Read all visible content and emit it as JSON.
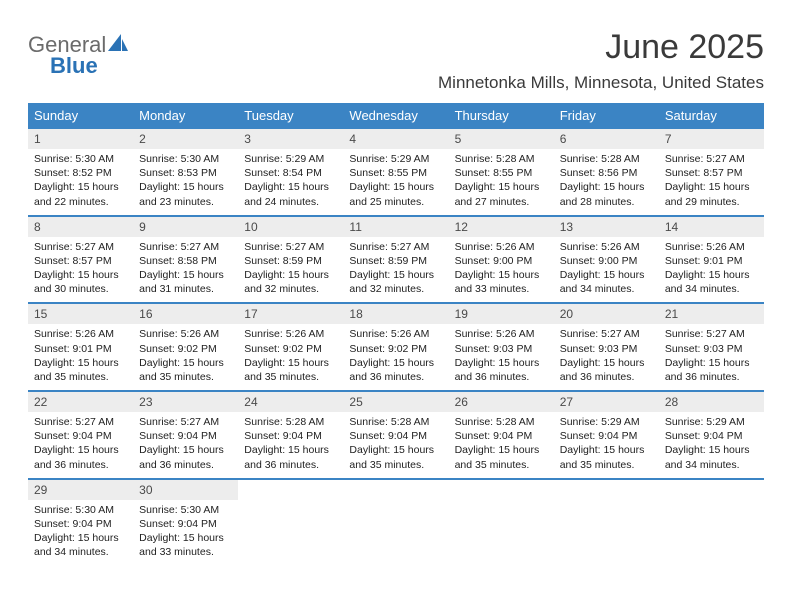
{
  "brand": {
    "word1": "General",
    "word2": "Blue"
  },
  "title": "June 2025",
  "location": "Minnetonka Mills, Minnesota, United States",
  "styling": {
    "header_blue": "#3b84c4",
    "day_bg": "#ededed",
    "background": "#ffffff",
    "text_color": "#222222",
    "month_fontsize": 34,
    "location_fontsize": 17,
    "dow_fontsize": 13,
    "daynum_fontsize": 12,
    "cell_fontsize": 10.5
  },
  "dow": [
    "Sunday",
    "Monday",
    "Tuesday",
    "Wednesday",
    "Thursday",
    "Friday",
    "Saturday"
  ],
  "weeks": [
    [
      {
        "n": "1",
        "sr": "5:30 AM",
        "ss": "8:52 PM",
        "dl": "15 hours and 22 minutes."
      },
      {
        "n": "2",
        "sr": "5:30 AM",
        "ss": "8:53 PM",
        "dl": "15 hours and 23 minutes."
      },
      {
        "n": "3",
        "sr": "5:29 AM",
        "ss": "8:54 PM",
        "dl": "15 hours and 24 minutes."
      },
      {
        "n": "4",
        "sr": "5:29 AM",
        "ss": "8:55 PM",
        "dl": "15 hours and 25 minutes."
      },
      {
        "n": "5",
        "sr": "5:28 AM",
        "ss": "8:55 PM",
        "dl": "15 hours and 27 minutes."
      },
      {
        "n": "6",
        "sr": "5:28 AM",
        "ss": "8:56 PM",
        "dl": "15 hours and 28 minutes."
      },
      {
        "n": "7",
        "sr": "5:27 AM",
        "ss": "8:57 PM",
        "dl": "15 hours and 29 minutes."
      }
    ],
    [
      {
        "n": "8",
        "sr": "5:27 AM",
        "ss": "8:57 PM",
        "dl": "15 hours and 30 minutes."
      },
      {
        "n": "9",
        "sr": "5:27 AM",
        "ss": "8:58 PM",
        "dl": "15 hours and 31 minutes."
      },
      {
        "n": "10",
        "sr": "5:27 AM",
        "ss": "8:59 PM",
        "dl": "15 hours and 32 minutes."
      },
      {
        "n": "11",
        "sr": "5:27 AM",
        "ss": "8:59 PM",
        "dl": "15 hours and 32 minutes."
      },
      {
        "n": "12",
        "sr": "5:26 AM",
        "ss": "9:00 PM",
        "dl": "15 hours and 33 minutes."
      },
      {
        "n": "13",
        "sr": "5:26 AM",
        "ss": "9:00 PM",
        "dl": "15 hours and 34 minutes."
      },
      {
        "n": "14",
        "sr": "5:26 AM",
        "ss": "9:01 PM",
        "dl": "15 hours and 34 minutes."
      }
    ],
    [
      {
        "n": "15",
        "sr": "5:26 AM",
        "ss": "9:01 PM",
        "dl": "15 hours and 35 minutes."
      },
      {
        "n": "16",
        "sr": "5:26 AM",
        "ss": "9:02 PM",
        "dl": "15 hours and 35 minutes."
      },
      {
        "n": "17",
        "sr": "5:26 AM",
        "ss": "9:02 PM",
        "dl": "15 hours and 35 minutes."
      },
      {
        "n": "18",
        "sr": "5:26 AM",
        "ss": "9:02 PM",
        "dl": "15 hours and 36 minutes."
      },
      {
        "n": "19",
        "sr": "5:26 AM",
        "ss": "9:03 PM",
        "dl": "15 hours and 36 minutes."
      },
      {
        "n": "20",
        "sr": "5:27 AM",
        "ss": "9:03 PM",
        "dl": "15 hours and 36 minutes."
      },
      {
        "n": "21",
        "sr": "5:27 AM",
        "ss": "9:03 PM",
        "dl": "15 hours and 36 minutes."
      }
    ],
    [
      {
        "n": "22",
        "sr": "5:27 AM",
        "ss": "9:04 PM",
        "dl": "15 hours and 36 minutes."
      },
      {
        "n": "23",
        "sr": "5:27 AM",
        "ss": "9:04 PM",
        "dl": "15 hours and 36 minutes."
      },
      {
        "n": "24",
        "sr": "5:28 AM",
        "ss": "9:04 PM",
        "dl": "15 hours and 36 minutes."
      },
      {
        "n": "25",
        "sr": "5:28 AM",
        "ss": "9:04 PM",
        "dl": "15 hours and 35 minutes."
      },
      {
        "n": "26",
        "sr": "5:28 AM",
        "ss": "9:04 PM",
        "dl": "15 hours and 35 minutes."
      },
      {
        "n": "27",
        "sr": "5:29 AM",
        "ss": "9:04 PM",
        "dl": "15 hours and 35 minutes."
      },
      {
        "n": "28",
        "sr": "5:29 AM",
        "ss": "9:04 PM",
        "dl": "15 hours and 34 minutes."
      }
    ],
    [
      {
        "n": "29",
        "sr": "5:30 AM",
        "ss": "9:04 PM",
        "dl": "15 hours and 34 minutes."
      },
      {
        "n": "30",
        "sr": "5:30 AM",
        "ss": "9:04 PM",
        "dl": "15 hours and 33 minutes."
      }
    ]
  ],
  "labels": {
    "sunrise": "Sunrise: ",
    "sunset": "Sunset: ",
    "daylight": "Daylight: "
  }
}
